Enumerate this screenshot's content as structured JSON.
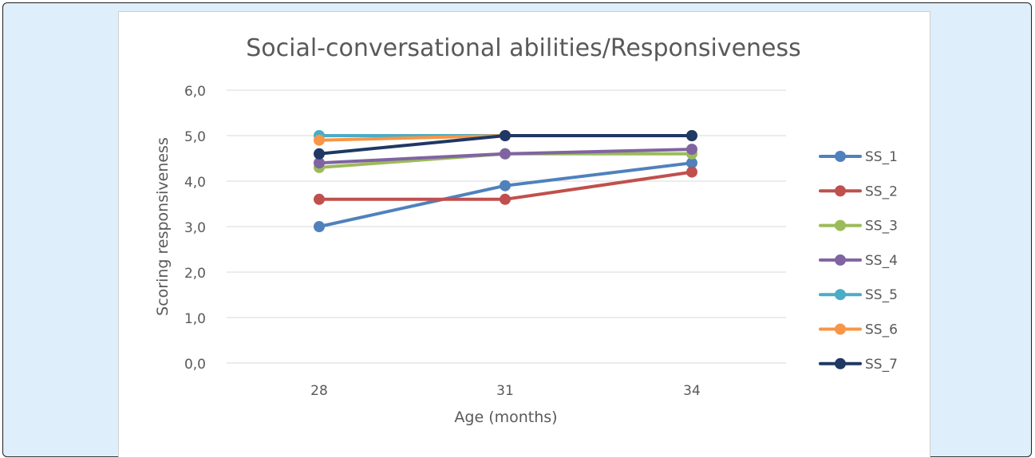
{
  "colors": {
    "frame_background": "#deeefa",
    "panel_background": "#ffffff",
    "gridline": "#d9d9d9",
    "axis_text": "#595959"
  },
  "chart_data": {
    "type": "line",
    "title": "Social-conversational abilities/Responsiveness",
    "xlabel": "Age (months)",
    "ylabel": "Scoring responsiveness",
    "categories": [
      "28",
      "31",
      "34"
    ],
    "ylim": [
      0,
      6
    ],
    "y_ticks": [
      "0,0",
      "1,0",
      "2,0",
      "3,0",
      "4,0",
      "5,0",
      "6,0"
    ],
    "grid": true,
    "legend_position": "right",
    "series": [
      {
        "name": "SS_1",
        "color": "#4f81bd",
        "values": [
          3.0,
          3.9,
          4.4
        ]
      },
      {
        "name": "SS_2",
        "color": "#c0504d",
        "values": [
          3.6,
          3.6,
          4.2
        ]
      },
      {
        "name": "SS_3",
        "color": "#9bbb59",
        "values": [
          4.3,
          4.6,
          4.6
        ]
      },
      {
        "name": "SS_4",
        "color": "#8064a2",
        "values": [
          4.4,
          4.6,
          4.7
        ]
      },
      {
        "name": "SS_5",
        "color": "#4bacc6",
        "values": [
          5.0,
          5.0,
          5.0
        ]
      },
      {
        "name": "SS_6",
        "color": "#f79646",
        "values": [
          4.9,
          5.0,
          5.0
        ]
      },
      {
        "name": "SS_7",
        "color": "#1f3864",
        "values": [
          4.6,
          5.0,
          5.0
        ]
      }
    ]
  }
}
